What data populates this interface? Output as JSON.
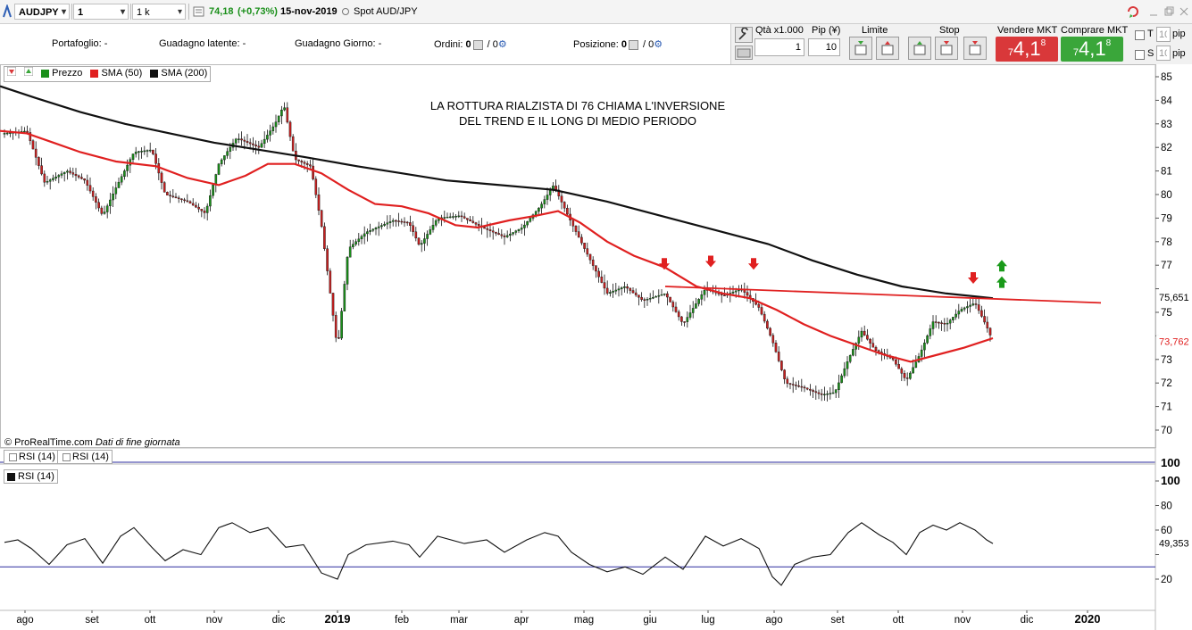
{
  "toolbar": {
    "symbol": "AUDJPY",
    "timeframe": "1 giorno",
    "units": "1 k unità",
    "price": "74,18",
    "change": "(+0,73%)",
    "date": "15-nov-2019",
    "description": "Spot AUD/JPY"
  },
  "info": {
    "portafoglio_label": "Portafoglio:",
    "portafoglio_value": "-",
    "guadagno_latente_label": "Guadagno latente:",
    "guadagno_latente_value": "-",
    "guadagno_giorno_label": "Guadagno Giorno:",
    "guadagno_giorno_value": "-",
    "ordini_label": "Ordini:",
    "ordini_a": "0",
    "ordini_b": "/ 0",
    "posizione_label": "Posizione:",
    "posizione_a": "0",
    "posizione_b": "/ 0"
  },
  "order_panel": {
    "qty_label": "Qtà x1.000",
    "qty_value": "1",
    "pip_label": "Pip (¥)",
    "pip_value": "10",
    "limite_label": "Limite",
    "stop_label": "Stop",
    "sell_label": "Vendere MKT",
    "buy_label": "Comprare MKT",
    "sell_prefix": "7",
    "sell_big": "4,1",
    "sell_sup": "8",
    "buy_prefix": "7",
    "buy_big": "4,1",
    "buy_sup": "8",
    "t_label": "T",
    "s_label": "S",
    "t_pip": "10",
    "s_pip": "10",
    "pip_unit": "pip",
    "sell_color": "#d9383a",
    "buy_color": "#3aa63a"
  },
  "legend": {
    "price": "Prezzo",
    "sma50": "SMA (50)",
    "sma200": "SMA (200)"
  },
  "copyright": "© ProRealTime.com",
  "copyright_note": "Dati di fine giornata",
  "rsi_tabs": [
    "RSI (14)",
    "RSI (14)"
  ],
  "rsi_label": "RSI (14)",
  "chart_data": {
    "type": "line",
    "title": "",
    "annotation_line1": "LA ROTTURA RIALZISTA DI 76 CHIAMA L'INVERSIONE",
    "annotation_line2": "DEL TREND E IL LONG DI MEDIO PERIODO",
    "ylim": [
      69.3,
      85.5
    ],
    "yticks": [
      70,
      71,
      72,
      73,
      74,
      75,
      76,
      77,
      78,
      79,
      80,
      81,
      82,
      83,
      84,
      85
    ],
    "ytick_labels": [
      "70",
      "71",
      "72",
      "73",
      "74",
      "75",
      "76",
      "77",
      "78",
      "79",
      "80",
      "81",
      "82",
      "83",
      "84",
      "85"
    ],
    "x_months": [
      "ago",
      "set",
      "ott",
      "nov",
      "dic",
      "2019",
      "feb",
      "mar",
      "apr",
      "mag",
      "giu",
      "lug",
      "ago",
      "set",
      "ott",
      "nov",
      "dic",
      "2020"
    ],
    "bold_months": [
      "2019",
      "2020"
    ],
    "last_price_label": "73,762",
    "sma200_last_label": "75,651",
    "last_price": 73.76,
    "series": [
      {
        "name": "SMA (200)",
        "color": "#111111",
        "points": [
          [
            0,
            84.6
          ],
          [
            40,
            84.1
          ],
          [
            90,
            83.5
          ],
          [
            140,
            83.0
          ],
          [
            190,
            82.6
          ],
          [
            240,
            82.2
          ],
          [
            290,
            81.9
          ],
          [
            340,
            81.6
          ],
          [
            400,
            81.2
          ],
          [
            450,
            80.9
          ],
          [
            500,
            80.6
          ],
          [
            560,
            80.4
          ],
          [
            620,
            80.2
          ],
          [
            680,
            79.7
          ],
          [
            740,
            79.1
          ],
          [
            800,
            78.5
          ],
          [
            860,
            77.9
          ],
          [
            910,
            77.2
          ],
          [
            960,
            76.6
          ],
          [
            1010,
            76.1
          ],
          [
            1060,
            75.8
          ],
          [
            1112,
            75.6
          ]
        ]
      },
      {
        "name": "SMA (50)",
        "color": "#e02020",
        "points": [
          [
            0,
            82.7
          ],
          [
            30,
            82.6
          ],
          [
            60,
            82.2
          ],
          [
            90,
            81.8
          ],
          [
            130,
            81.4
          ],
          [
            175,
            81.2
          ],
          [
            210,
            80.7
          ],
          [
            245,
            80.4
          ],
          [
            275,
            80.8
          ],
          [
            300,
            81.3
          ],
          [
            330,
            81.3
          ],
          [
            360,
            80.9
          ],
          [
            390,
            80.2
          ],
          [
            420,
            79.6
          ],
          [
            450,
            79.5
          ],
          [
            480,
            79.2
          ],
          [
            510,
            78.7
          ],
          [
            535,
            78.6
          ],
          [
            570,
            78.9
          ],
          [
            600,
            79.1
          ],
          [
            625,
            79.3
          ],
          [
            650,
            78.8
          ],
          [
            680,
            78.0
          ],
          [
            710,
            77.4
          ],
          [
            745,
            76.9
          ],
          [
            780,
            76.1
          ],
          [
            810,
            75.8
          ],
          [
            840,
            75.6
          ],
          [
            870,
            75.1
          ],
          [
            900,
            74.5
          ],
          [
            930,
            74.0
          ],
          [
            960,
            73.6
          ],
          [
            990,
            73.2
          ],
          [
            1020,
            72.9
          ],
          [
            1050,
            73.2
          ],
          [
            1080,
            73.5
          ],
          [
            1112,
            73.9
          ]
        ]
      },
      {
        "name": "Prezzo",
        "color": "#1a8f1a",
        "points": [
          [
            5,
            82.6
          ],
          [
            30,
            82.7
          ],
          [
            50,
            80.5
          ],
          [
            75,
            81.0
          ],
          [
            95,
            80.6
          ],
          [
            115,
            79.1
          ],
          [
            130,
            80.3
          ],
          [
            150,
            81.8
          ],
          [
            170,
            81.9
          ],
          [
            185,
            80.0
          ],
          [
            210,
            79.7
          ],
          [
            230,
            79.2
          ],
          [
            245,
            81.3
          ],
          [
            265,
            82.4
          ],
          [
            290,
            82.0
          ],
          [
            308,
            83.0
          ],
          [
            318,
            83.8
          ],
          [
            330,
            81.5
          ],
          [
            348,
            81.2
          ],
          [
            360,
            78.7
          ],
          [
            378,
            73.4
          ],
          [
            390,
            77.7
          ],
          [
            410,
            78.4
          ],
          [
            440,
            78.9
          ],
          [
            458,
            78.8
          ],
          [
            470,
            77.8
          ],
          [
            490,
            79.0
          ],
          [
            515,
            79.1
          ],
          [
            540,
            78.6
          ],
          [
            565,
            78.2
          ],
          [
            585,
            78.6
          ],
          [
            605,
            79.5
          ],
          [
            620,
            80.4
          ],
          [
            640,
            78.8
          ],
          [
            660,
            77.3
          ],
          [
            680,
            75.8
          ],
          [
            700,
            76.1
          ],
          [
            720,
            75.5
          ],
          [
            745,
            75.8
          ],
          [
            765,
            74.5
          ],
          [
            790,
            76.0
          ],
          [
            810,
            75.7
          ],
          [
            830,
            76.0
          ],
          [
            850,
            75.2
          ],
          [
            865,
            73.8
          ],
          [
            880,
            72.0
          ],
          [
            900,
            71.8
          ],
          [
            920,
            71.5
          ],
          [
            935,
            71.6
          ],
          [
            950,
            73.0
          ],
          [
            965,
            74.2
          ],
          [
            980,
            73.4
          ],
          [
            1000,
            73.0
          ],
          [
            1015,
            72.1
          ],
          [
            1030,
            73.2
          ],
          [
            1045,
            74.6
          ],
          [
            1060,
            74.5
          ],
          [
            1075,
            75.1
          ],
          [
            1092,
            75.4
          ],
          [
            1105,
            74.4
          ],
          [
            1112,
            73.76
          ]
        ]
      }
    ],
    "trendline": {
      "color": "#e02020",
      "points": [
        [
          745,
          76.1
        ],
        [
          1233,
          75.4
        ]
      ]
    },
    "down_arrows": [
      {
        "x": 744,
        "y": 77.0
      },
      {
        "x": 796,
        "y": 77.1
      },
      {
        "x": 844,
        "y": 77.0
      },
      {
        "x": 1090,
        "y": 76.4
      }
    ],
    "up_arrows": [
      {
        "x": 1122,
        "y": 77.0
      },
      {
        "x": 1122,
        "y": 76.3
      }
    ]
  },
  "rsi_data": {
    "type": "line",
    "ylim": [
      8,
      108
    ],
    "yticks": [
      20,
      40,
      60,
      80,
      100
    ],
    "ytick_labels": [
      "20",
      "40",
      "60",
      "80",
      "100"
    ],
    "level": 30,
    "last_label": "49,353",
    "line_color": "#111111",
    "level_color": "#2b2b9e",
    "points": [
      [
        5,
        50
      ],
      [
        20,
        52
      ],
      [
        35,
        45
      ],
      [
        55,
        32
      ],
      [
        75,
        48
      ],
      [
        95,
        53
      ],
      [
        115,
        33
      ],
      [
        135,
        55
      ],
      [
        150,
        62
      ],
      [
        170,
        46
      ],
      [
        185,
        35
      ],
      [
        205,
        44
      ],
      [
        225,
        40
      ],
      [
        245,
        62
      ],
      [
        260,
        66
      ],
      [
        280,
        58
      ],
      [
        300,
        62
      ],
      [
        320,
        46
      ],
      [
        340,
        48
      ],
      [
        360,
        25
      ],
      [
        378,
        20
      ],
      [
        390,
        40
      ],
      [
        410,
        48
      ],
      [
        440,
        51
      ],
      [
        458,
        48
      ],
      [
        470,
        38
      ],
      [
        490,
        55
      ],
      [
        520,
        49
      ],
      [
        545,
        52
      ],
      [
        565,
        42
      ],
      [
        590,
        52
      ],
      [
        610,
        58
      ],
      [
        625,
        55
      ],
      [
        640,
        42
      ],
      [
        660,
        32
      ],
      [
        680,
        26
      ],
      [
        700,
        30
      ],
      [
        720,
        24
      ],
      [
        745,
        38
      ],
      [
        765,
        28
      ],
      [
        790,
        55
      ],
      [
        810,
        47
      ],
      [
        830,
        53
      ],
      [
        850,
        45
      ],
      [
        865,
        22
      ],
      [
        875,
        15
      ],
      [
        890,
        32
      ],
      [
        910,
        38
      ],
      [
        930,
        40
      ],
      [
        950,
        58
      ],
      [
        965,
        66
      ],
      [
        985,
        56
      ],
      [
        1000,
        50
      ],
      [
        1015,
        40
      ],
      [
        1030,
        58
      ],
      [
        1045,
        64
      ],
      [
        1060,
        60
      ],
      [
        1075,
        66
      ],
      [
        1092,
        60
      ],
      [
        1105,
        52
      ],
      [
        1112,
        49
      ]
    ]
  }
}
